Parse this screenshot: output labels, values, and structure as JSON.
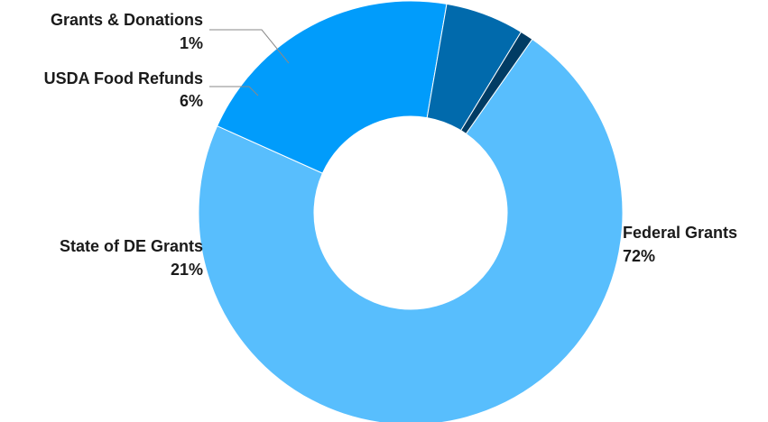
{
  "chart_data": {
    "type": "pie",
    "donut": true,
    "start_angle_deg": 35,
    "direction": "clockwise",
    "slices": [
      {
        "label": "Federal Grants",
        "value": 72,
        "value_text": "72%",
        "color": "#58BEFD"
      },
      {
        "label": "State of DE Grants",
        "value": 21,
        "value_text": "21%",
        "color": "#019CFB"
      },
      {
        "label": "USDA Food Refunds",
        "value": 6,
        "value_text": "6%",
        "color": "#016AAC"
      },
      {
        "label": "Grants & Donations",
        "value": 1,
        "value_text": "1%",
        "color": "#013C64"
      }
    ]
  }
}
